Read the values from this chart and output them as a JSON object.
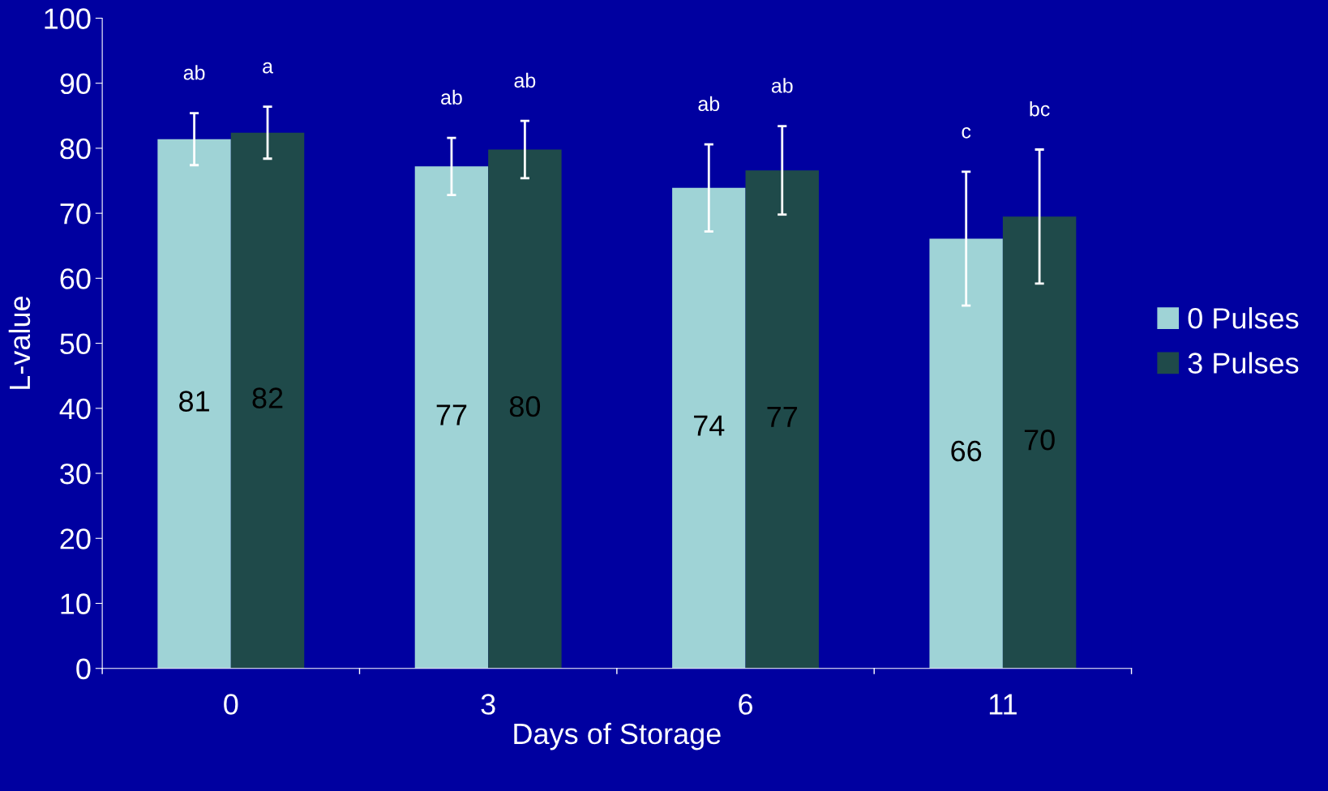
{
  "chart_data": {
    "type": "bar",
    "xlabel": "Days of Storage",
    "ylabel": "L-value",
    "categories": [
      "0",
      "3",
      "6",
      "11"
    ],
    "series": [
      {
        "name": "0 Pulses",
        "color": "#9fd3d6",
        "values": [
          81.4,
          77.2,
          73.9,
          66.1
        ],
        "errors": [
          4,
          4.4,
          6.7,
          10.3
        ],
        "value_labels": [
          "81",
          "77",
          "74",
          "66"
        ]
      },
      {
        "name": "3 Pulses",
        "color": "#1f4a4a",
        "values": [
          82.4,
          79.8,
          76.6,
          69.5
        ],
        "errors": [
          4,
          4.4,
          6.8,
          10.3
        ],
        "value_labels": [
          "82",
          "80",
          "77",
          "70"
        ]
      }
    ],
    "annotations": [
      "ab",
      "a",
      "ab",
      "ab",
      "ab",
      "ab",
      "c",
      "bc"
    ],
    "ylim": [
      0,
      100
    ],
    "yticks": [
      0,
      10,
      20,
      30,
      40,
      50,
      60,
      70,
      80,
      90,
      100
    ],
    "grid": false,
    "legend": "right"
  }
}
